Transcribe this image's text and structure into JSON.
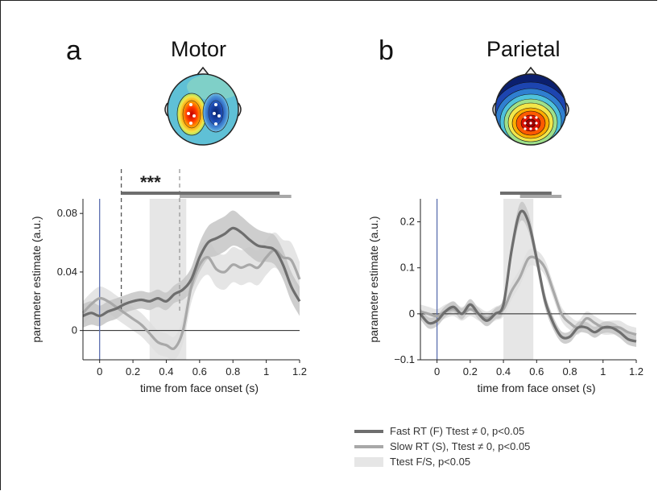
{
  "colors": {
    "fast": "#6e6e6e",
    "slow": "#a8a8a8",
    "fast_band": "#c6c6c6",
    "slow_band": "#dedede",
    "sig_band": "#e6e6e6",
    "onset_line": "#5b6fb0"
  },
  "panels": [
    {
      "letter": "a",
      "title": "Motor",
      "stars": "***"
    },
    {
      "letter": "b",
      "title": "Parietal"
    }
  ],
  "legend": [
    {
      "label": "Fast RT (F) Ttest ≠ 0, p<0.05",
      "swatch": "line-dark"
    },
    {
      "label": "Slow RT (S), Ttest ≠ 0, p<0.05",
      "swatch": "line-light"
    },
    {
      "label": "Ttest F/S, p<0.05",
      "swatch": "band"
    }
  ],
  "chart_data": [
    {
      "type": "line",
      "title": "Motor",
      "xlabel": "time from face onset (s)",
      "ylabel": "parameter estimate (a.u.)",
      "xlim": [
        -0.1,
        1.2
      ],
      "ylim": [
        -0.02,
        0.09
      ],
      "xticks": [
        0,
        0.2,
        0.4,
        0.6,
        0.8,
        1,
        1.2
      ],
      "xtick_labels": [
        "0",
        "0.2",
        "0.4",
        "0.6",
        "0.8",
        "1",
        "1.2"
      ],
      "yticks": [
        0,
        0.04,
        0.08
      ],
      "ytick_labels": [
        "0",
        "0.04",
        "0.08"
      ],
      "significant_window": [
        0.3,
        0.52
      ],
      "dashed_lines": [
        0.13,
        0.48
      ],
      "sig_bars": [
        {
          "series": "Fast RT",
          "range": [
            0.13,
            1.08
          ]
        },
        {
          "series": "Slow RT",
          "range": [
            0.48,
            1.15
          ]
        }
      ],
      "x": [
        -0.1,
        -0.05,
        0,
        0.05,
        0.1,
        0.15,
        0.2,
        0.25,
        0.3,
        0.35,
        0.4,
        0.45,
        0.5,
        0.55,
        0.6,
        0.65,
        0.7,
        0.75,
        0.8,
        0.85,
        0.9,
        0.95,
        1,
        1.05,
        1.1,
        1.15,
        1.2
      ],
      "series": [
        {
          "name": "Fast RT",
          "values": [
            0.01,
            0.012,
            0.01,
            0.013,
            0.015,
            0.018,
            0.02,
            0.021,
            0.02,
            0.022,
            0.02,
            0.025,
            0.028,
            0.035,
            0.05,
            0.06,
            0.063,
            0.066,
            0.07,
            0.067,
            0.062,
            0.058,
            0.057,
            0.055,
            0.045,
            0.03,
            0.02
          ],
          "sem": [
            0.008,
            0.008,
            0.007,
            0.007,
            0.007,
            0.006,
            0.006,
            0.006,
            0.006,
            0.006,
            0.006,
            0.006,
            0.007,
            0.008,
            0.01,
            0.011,
            0.012,
            0.012,
            0.012,
            0.011,
            0.011,
            0.011,
            0.01,
            0.01,
            0.01,
            0.01,
            0.01
          ]
        },
        {
          "name": "Slow RT",
          "values": [
            0.012,
            0.018,
            0.022,
            0.02,
            0.016,
            0.012,
            0.008,
            0.004,
            -0.002,
            -0.008,
            -0.01,
            -0.012,
            0.0,
            0.03,
            0.045,
            0.05,
            0.042,
            0.04,
            0.045,
            0.043,
            0.045,
            0.043,
            0.05,
            0.055,
            0.05,
            0.048,
            0.035
          ],
          "sem": [
            0.008,
            0.008,
            0.008,
            0.008,
            0.008,
            0.008,
            0.008,
            0.008,
            0.008,
            0.008,
            0.008,
            0.008,
            0.009,
            0.011,
            0.012,
            0.012,
            0.012,
            0.012,
            0.012,
            0.012,
            0.012,
            0.012,
            0.012,
            0.012,
            0.012,
            0.012,
            0.012
          ]
        }
      ]
    },
    {
      "type": "line",
      "title": "Parietal",
      "xlabel": "time from face onset (s)",
      "ylabel": "parameter estimate (a.u.)",
      "xlim": [
        -0.1,
        1.2
      ],
      "ylim": [
        -0.1,
        0.25
      ],
      "xticks": [
        0,
        0.2,
        0.4,
        0.6,
        0.8,
        1,
        1.2
      ],
      "xtick_labels": [
        "0",
        "0.2",
        "0.4",
        "0.6",
        "0.8",
        "1",
        "1.2"
      ],
      "yticks": [
        -0.1,
        0,
        0.1,
        0.2
      ],
      "ytick_labels": [
        "−0.1",
        "0",
        "0.1",
        "0.2"
      ],
      "significant_window": [
        0.4,
        0.58
      ],
      "dashed_lines": [],
      "sig_bars": [
        {
          "series": "Fast RT",
          "range": [
            0.38,
            0.69
          ]
        },
        {
          "series": "Slow RT",
          "range": [
            0.5,
            0.75
          ]
        }
      ],
      "x": [
        -0.1,
        -0.05,
        0,
        0.05,
        0.1,
        0.15,
        0.2,
        0.25,
        0.3,
        0.35,
        0.4,
        0.45,
        0.5,
        0.55,
        0.6,
        0.65,
        0.7,
        0.75,
        0.8,
        0.85,
        0.9,
        0.95,
        1,
        1.05,
        1.1,
        1.15,
        1.2
      ],
      "series": [
        {
          "name": "Fast RT",
          "values": [
            0.0,
            -0.02,
            -0.015,
            0.005,
            0.015,
            0.0,
            0.02,
            0.0,
            -0.015,
            0.0,
            0.02,
            0.14,
            0.22,
            0.2,
            0.12,
            0.03,
            -0.02,
            -0.05,
            -0.05,
            -0.03,
            -0.03,
            -0.04,
            -0.03,
            -0.03,
            -0.04,
            -0.055,
            -0.06
          ],
          "sem": [
            0.012,
            0.012,
            0.012,
            0.012,
            0.012,
            0.012,
            0.012,
            0.012,
            0.012,
            0.012,
            0.015,
            0.018,
            0.02,
            0.02,
            0.018,
            0.016,
            0.014,
            0.012,
            0.012,
            0.012,
            0.012,
            0.012,
            0.012,
            0.012,
            0.012,
            0.012,
            0.012
          ]
        },
        {
          "name": "Slow RT",
          "values": [
            0.005,
            0.0,
            -0.005,
            0.005,
            0.01,
            0.0,
            0.01,
            0.0,
            -0.01,
            0.0,
            0.01,
            0.05,
            0.08,
            0.12,
            0.12,
            0.1,
            0.05,
            0.0,
            -0.02,
            -0.03,
            -0.01,
            -0.02,
            -0.03,
            -0.03,
            -0.03,
            -0.04,
            -0.045
          ],
          "sem": [
            0.015,
            0.015,
            0.015,
            0.015,
            0.015,
            0.015,
            0.015,
            0.015,
            0.015,
            0.015,
            0.016,
            0.018,
            0.018,
            0.018,
            0.018,
            0.017,
            0.016,
            0.015,
            0.015,
            0.015,
            0.015,
            0.015,
            0.015,
            0.015,
            0.015,
            0.015,
            0.015
          ]
        }
      ]
    }
  ]
}
